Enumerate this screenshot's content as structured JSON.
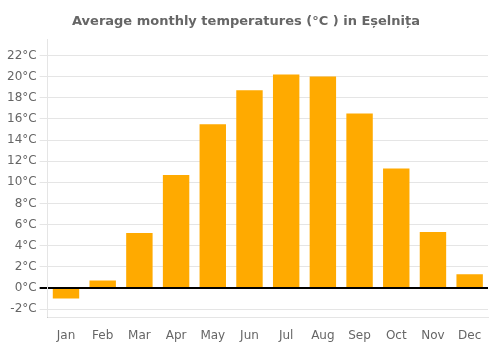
{
  "chart_data": {
    "type": "bar",
    "title": "Average monthly temperatures (°C ) in Eșelnița",
    "categories": [
      "Jan",
      "Feb",
      "Mar",
      "Apr",
      "May",
      "Jun",
      "Jul",
      "Aug",
      "Sep",
      "Oct",
      "Nov",
      "Dec"
    ],
    "values": [
      -1.0,
      0.7,
      5.2,
      10.7,
      15.5,
      18.7,
      20.2,
      20.0,
      16.5,
      11.3,
      5.3,
      1.3
    ],
    "color": "#FFAA00",
    "ylim": [
      -2.8,
      23.5
    ],
    "yticks": [
      {
        "value": -2,
        "label": "-2°C"
      },
      {
        "value": 0,
        "label": "0°C"
      },
      {
        "value": 2,
        "label": "2°C"
      },
      {
        "value": 4,
        "label": "4°C"
      },
      {
        "value": 6,
        "label": "6°C"
      },
      {
        "value": 8,
        "label": "8°C"
      },
      {
        "value": 10,
        "label": "10°C"
      },
      {
        "value": 12,
        "label": "12°C"
      },
      {
        "value": 14,
        "label": "14°C"
      },
      {
        "value": 16,
        "label": "16°C"
      },
      {
        "value": 18,
        "label": "18°C"
      },
      {
        "value": 20,
        "label": "20°C"
      },
      {
        "value": 22,
        "label": "22°C"
      }
    ],
    "grid": true
  }
}
